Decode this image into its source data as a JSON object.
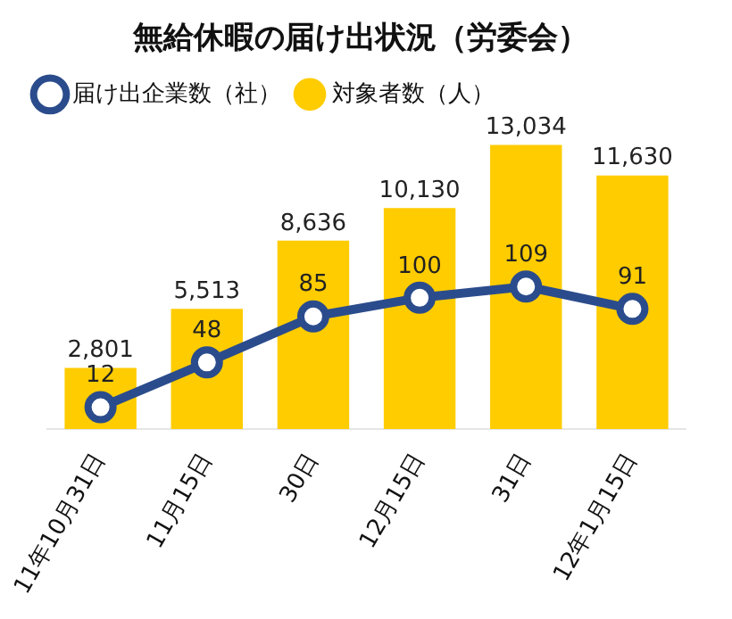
{
  "chart_data": {
    "type": "bar",
    "title": "無給休暇の届け出状況（労委会）",
    "categories": [
      "11年10月31日",
      "11月15日",
      "30日",
      "12月15日",
      "31日",
      "12年1月15日"
    ],
    "series": [
      {
        "name": "届け出企業数（社）",
        "type": "line",
        "axis": "y2",
        "color": "#2b4c8c",
        "values": [
          12,
          48,
          85,
          100,
          109,
          91
        ],
        "value_labels": [
          "12",
          "48",
          "85",
          "100",
          "109",
          "91"
        ]
      },
      {
        "name": "対象者数（人）",
        "color": "#ffcc00",
        "values": [
          2801,
          5513,
          8636,
          10130,
          13034,
          11630
        ],
        "value_labels": [
          "2,801",
          "5,513",
          "8,636",
          "10,130",
          "13,034",
          "11,630"
        ]
      }
    ],
    "legend": "top left",
    "marker": "circle",
    "tick_labels": "x"
  }
}
